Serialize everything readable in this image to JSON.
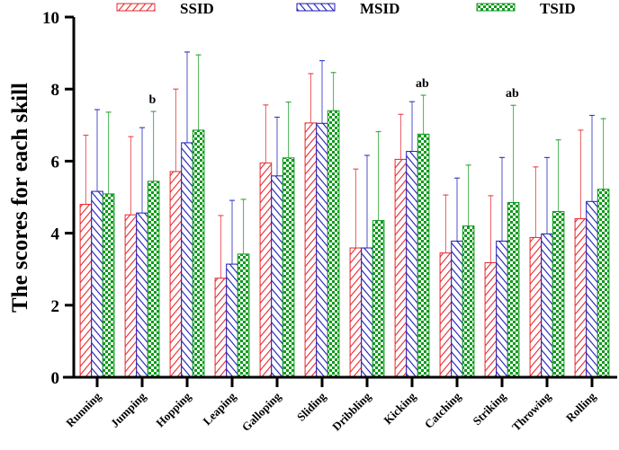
{
  "chart_data": {
    "type": "bar",
    "title": "",
    "xlabel": "",
    "ylabel": "The scores for each skill",
    "ylim": [
      0,
      10
    ],
    "yticks": [
      0,
      2,
      4,
      6,
      8,
      10
    ],
    "grid": false,
    "legend_placement": "top",
    "categories": [
      "Running",
      "Jumping",
      "Hopping",
      "Leaping",
      "Galloping",
      "Sliding",
      "Dribbling",
      "Kicking",
      "Catching",
      "Striking",
      "Throwing",
      "Rolling"
    ],
    "series": [
      {
        "name": "SSID",
        "color": "#e8262b",
        "pattern": "forward-hatch",
        "values": [
          4.8,
          4.51,
          5.71,
          2.75,
          5.95,
          7.06,
          3.59,
          6.05,
          3.45,
          3.18,
          3.88,
          4.4
        ],
        "error_upper": [
          6.72,
          6.68,
          8.0,
          4.49,
          7.56,
          8.43,
          5.78,
          7.3,
          5.06,
          5.04,
          5.84,
          6.86
        ]
      },
      {
        "name": "MSID",
        "color": "#1a1ab5",
        "pattern": "back-hatch",
        "values": [
          5.16,
          4.56,
          6.51,
          3.14,
          5.59,
          7.05,
          3.59,
          6.27,
          3.78,
          3.78,
          3.98,
          4.88
        ],
        "error_upper": [
          7.43,
          6.93,
          9.03,
          4.91,
          7.22,
          8.79,
          6.16,
          7.65,
          5.53,
          6.1,
          6.1,
          7.27
        ]
      },
      {
        "name": "TSID",
        "color": "#0e9a1c",
        "pattern": "checker",
        "values": [
          5.09,
          5.44,
          6.86,
          3.42,
          6.09,
          7.4,
          4.35,
          6.75,
          4.2,
          4.85,
          4.6,
          5.22
        ],
        "error_upper": [
          7.36,
          7.38,
          8.95,
          4.94,
          7.64,
          8.46,
          6.82,
          7.83,
          5.89,
          7.55,
          6.59,
          7.18
        ]
      }
    ],
    "annotations": [
      {
        "category": "Jumping",
        "text": "b"
      },
      {
        "category": "Kicking",
        "text": "ab"
      },
      {
        "category": "Striking",
        "text": "ab"
      }
    ]
  }
}
